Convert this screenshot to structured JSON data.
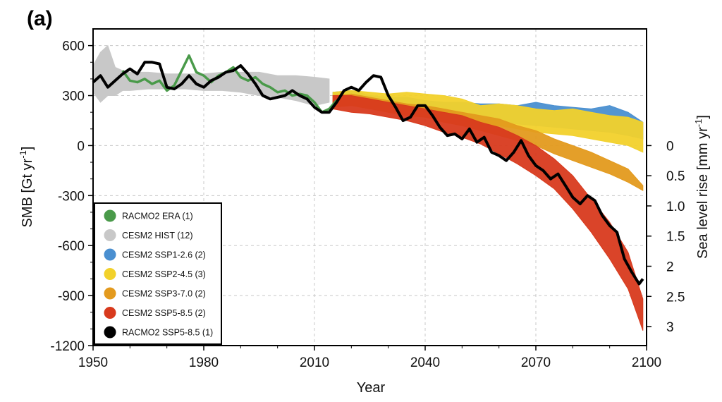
{
  "panel_label": "(a)",
  "chart_data": {
    "type": "line",
    "xlabel": "Year",
    "ylabel": "SMB [Gt yr",
    "ylabel_sup": "-1",
    "ylabel_close": "]",
    "y2label": "Sea level rise [mm yr",
    "y2label_sup": "-1",
    "y2label_close": "]",
    "xlim": [
      1950,
      2100
    ],
    "ylim": [
      -1200,
      700
    ],
    "xticks": [
      "1950",
      "1980",
      "2010",
      "2040",
      "2070",
      "2100"
    ],
    "yticks": [
      "600",
      "300",
      "0",
      "-300",
      "-600",
      "-900",
      "-1200"
    ],
    "y2ticks": [
      "0",
      "0.5",
      "1.0",
      "1.5",
      "2",
      "2.5",
      "3"
    ],
    "y2_tick_values_gt": [
      0,
      -181,
      -362,
      -543,
      -724,
      -905,
      -1086
    ],
    "grid": true,
    "legend_position": "lower-left",
    "legend": [
      {
        "label": "RACMO2 ERA (1)",
        "color": "#4a9a4a"
      },
      {
        "label": "CESM2 HIST (12)",
        "color": "#c8c8c8"
      },
      {
        "label": "CESM2 SSP1-2.6 (2)",
        "color": "#4a8fd0"
      },
      {
        "label": "CESM2 SSP2-4.5 (3)",
        "color": "#f2d12b"
      },
      {
        "label": "CESM2 SSP3-7.0 (2)",
        "color": "#e39a1e"
      },
      {
        "label": "CESM2 SSP5-8.5 (2)",
        "color": "#d83a1d"
      },
      {
        "label": "RACMO2 SSP5-8.5 (1)",
        "color": "#000000"
      }
    ],
    "bands": [
      {
        "name": "CESM2 HIST (12)",
        "color": "#c8c8c8",
        "x": [
          1950,
          1952,
          1954,
          1956,
          1958,
          1960,
          1965,
          1970,
          1975,
          1980,
          1985,
          1990,
          1995,
          2000,
          2005,
          2010,
          2014
        ],
        "lower": [
          320,
          260,
          300,
          300,
          330,
          330,
          340,
          340,
          340,
          330,
          330,
          320,
          300,
          290,
          270,
          240,
          260
        ],
        "upper": [
          480,
          560,
          600,
          470,
          450,
          440,
          440,
          430,
          430,
          430,
          440,
          440,
          440,
          420,
          420,
          410,
          400
        ]
      },
      {
        "name": "CESM2 SSP1-2.6 (2)",
        "color": "#4a8fd0",
        "x": [
          2015,
          2020,
          2025,
          2030,
          2035,
          2040,
          2045,
          2050,
          2055,
          2060,
          2065,
          2070,
          2075,
          2080,
          2085,
          2090,
          2095,
          2099
        ],
        "lower": [
          250,
          260,
          250,
          240,
          230,
          210,
          180,
          160,
          140,
          150,
          130,
          120,
          110,
          100,
          90,
          80,
          60,
          40
        ],
        "upper": [
          320,
          330,
          300,
          290,
          290,
          270,
          260,
          260,
          250,
          250,
          240,
          260,
          240,
          230,
          220,
          240,
          200,
          140
        ]
      },
      {
        "name": "CESM2 SSP2-4.5 (3)",
        "color": "#f2d12b",
        "x": [
          2015,
          2020,
          2025,
          2030,
          2035,
          2040,
          2045,
          2050,
          2055,
          2060,
          2065,
          2070,
          2075,
          2080,
          2085,
          2090,
          2095,
          2099
        ],
        "lower": [
          230,
          240,
          230,
          220,
          210,
          200,
          180,
          150,
          120,
          120,
          100,
          80,
          70,
          60,
          40,
          20,
          0,
          -40
        ],
        "upper": [
          320,
          330,
          320,
          310,
          320,
          310,
          300,
          280,
          240,
          250,
          240,
          220,
          210,
          220,
          200,
          180,
          170,
          140
        ]
      },
      {
        "name": "CESM2 SSP3-7.0 (2)",
        "color": "#e39a1e",
        "x": [
          2015,
          2020,
          2025,
          2030,
          2035,
          2040,
          2045,
          2050,
          2055,
          2060,
          2065,
          2070,
          2075,
          2080,
          2085,
          2090,
          2095,
          2099
        ],
        "lower": [
          230,
          240,
          220,
          200,
          180,
          170,
          140,
          120,
          90,
          60,
          30,
          0,
          -50,
          -90,
          -130,
          -170,
          -220,
          -270
        ],
        "upper": [
          300,
          310,
          290,
          270,
          250,
          240,
          220,
          200,
          180,
          160,
          120,
          90,
          40,
          0,
          -40,
          -90,
          -140,
          -240
        ]
      },
      {
        "name": "CESM2 SSP5-8.5 (2)",
        "color": "#d83a1d",
        "x": [
          2015,
          2020,
          2025,
          2030,
          2035,
          2040,
          2045,
          2050,
          2055,
          2060,
          2065,
          2070,
          2075,
          2080,
          2085,
          2090,
          2095,
          2099
        ],
        "lower": [
          220,
          200,
          190,
          170,
          150,
          120,
          80,
          50,
          10,
          -50,
          -110,
          -180,
          -260,
          -380,
          -520,
          -680,
          -860,
          -1110
        ],
        "upper": [
          300,
          300,
          280,
          260,
          240,
          220,
          200,
          180,
          140,
          110,
          60,
          0,
          -80,
          -180,
          -320,
          -460,
          -640,
          -920
        ]
      }
    ],
    "series": [
      {
        "name": "RACMO2 ERA (1)",
        "color": "#4a9a4a",
        "width": 3.5,
        "x": [
          1958,
          1960,
          1962,
          1964,
          1966,
          1968,
          1970,
          1972,
          1974,
          1976,
          1978,
          1980,
          1982,
          1984,
          1986,
          1988,
          1990,
          1992,
          1994,
          1996,
          1998,
          2000,
          2002,
          2004,
          2006,
          2008,
          2010,
          2012,
          2014,
          2016
        ],
        "y": [
          450,
          390,
          380,
          400,
          370,
          390,
          330,
          360,
          450,
          540,
          440,
          420,
          380,
          420,
          440,
          470,
          410,
          390,
          410,
          370,
          350,
          320,
          330,
          300,
          310,
          300,
          260,
          200,
          220,
          270
        ]
      },
      {
        "name": "RACMO2 SSP5-8.5 (1)",
        "color": "#000000",
        "width": 4,
        "x": [
          1950,
          1952,
          1954,
          1956,
          1958,
          1960,
          1962,
          1964,
          1966,
          1968,
          1970,
          1972,
          1974,
          1976,
          1978,
          1980,
          1982,
          1984,
          1986,
          1988,
          1990,
          1992,
          1994,
          1996,
          1998,
          2000,
          2002,
          2004,
          2006,
          2008,
          2010,
          2012,
          2014,
          2016,
          2018,
          2020,
          2022,
          2024,
          2026,
          2028,
          2030,
          2032,
          2034,
          2036,
          2038,
          2040,
          2042,
          2044,
          2046,
          2048,
          2050,
          2052,
          2054,
          2056,
          2058,
          2060,
          2062,
          2064,
          2066,
          2068,
          2070,
          2072,
          2074,
          2076,
          2078,
          2080,
          2082,
          2084,
          2086,
          2088,
          2090,
          2092,
          2094,
          2096,
          2098,
          2099
        ],
        "y": [
          380,
          420,
          350,
          390,
          430,
          460,
          430,
          500,
          500,
          490,
          350,
          340,
          370,
          420,
          370,
          350,
          390,
          410,
          440,
          450,
          480,
          430,
          370,
          300,
          280,
          290,
          300,
          330,
          300,
          280,
          230,
          200,
          200,
          260,
          330,
          350,
          330,
          380,
          420,
          410,
          300,
          230,
          150,
          170,
          240,
          240,
          180,
          110,
          60,
          70,
          40,
          100,
          20,
          50,
          -40,
          -60,
          -90,
          -40,
          30,
          -60,
          -120,
          -150,
          -200,
          -170,
          -240,
          -310,
          -350,
          -300,
          -330,
          -420,
          -480,
          -520,
          -680,
          -760,
          -830,
          -800
        ]
      }
    ]
  }
}
